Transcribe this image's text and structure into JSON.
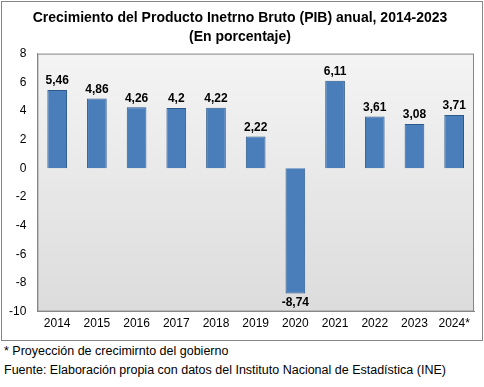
{
  "chart_data": {
    "type": "bar",
    "title": "Crecimiento del Producto Inetrno Bruto (PIB) anual, 2014-2023",
    "subtitle": "(En porcentaje)",
    "categories": [
      "2014",
      "2015",
      "2016",
      "2017",
      "2018",
      "2019",
      "2020",
      "2021",
      "2022",
      "2023",
      "2024*"
    ],
    "values": [
      5.46,
      4.86,
      4.26,
      4.2,
      4.22,
      2.22,
      -8.74,
      6.11,
      3.61,
      3.08,
      3.71
    ],
    "value_labels": [
      "5,46",
      "4,86",
      "4,26",
      "4,2",
      "4,22",
      "2,22",
      "-8,74",
      "6,11",
      "3,61",
      "3,08",
      "3,71"
    ],
    "color": "#4a7ebb",
    "ylim": [
      -10,
      8
    ],
    "yticks": [
      -10,
      -8,
      -6,
      -4,
      -2,
      0,
      2,
      4,
      6,
      8
    ],
    "grid": false,
    "data_labels": true,
    "annotations": [
      "* Proyección de crecimirnto del gobierno",
      "Fuente: Elaboración propia con datos del Instituto Nacional de Estadística (INE)"
    ]
  }
}
